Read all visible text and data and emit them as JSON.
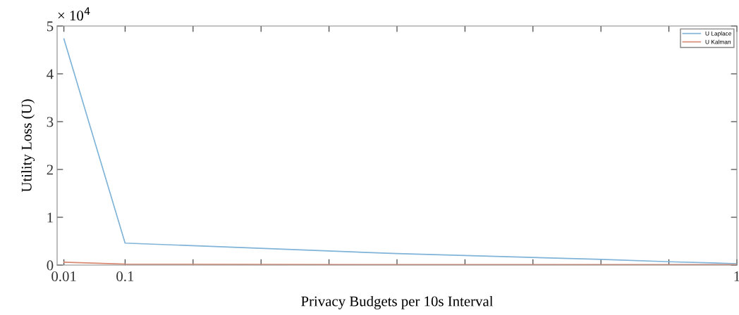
{
  "chart_data": {
    "type": "line",
    "xlabel": "Privacy Budgets per 10s Interval",
    "ylabel": "Utility Loss (U)",
    "xlim": [
      0,
      1
    ],
    "xticks": [
      0.01,
      0.1,
      {
        "value": 0.2,
        "label": null
      },
      {
        "value": 0.3,
        "label": null
      },
      {
        "value": 0.4,
        "label": null
      },
      {
        "value": 0.5,
        "label": null
      },
      {
        "value": 0.6,
        "label": null
      },
      {
        "value": 0.7,
        "label": null
      },
      {
        "value": 0.8,
        "label": null
      },
      {
        "value": 0.9,
        "label": null
      },
      1
    ],
    "ylim": [
      0,
      5
    ],
    "yticks": [
      0,
      1,
      2,
      3,
      4,
      5
    ],
    "annotations": [
      "× 10$^{4}$"
    ],
    "legend": "top right",
    "grid": false,
    "marker": "none",
    "line_style": "solid",
    "series": [
      {
        "name": "U Laplace",
        "color": "#7fb3d8",
        "x": [
          0.01,
          0.1,
          0.5,
          0.8,
          0.9,
          1
        ],
        "values": [
          4.73,
          0.46,
          0.24,
          0.12,
          0.07,
          0.03
        ]
      },
      {
        "name": "U Kalman",
        "color": "#d98a72",
        "x": [
          0.01,
          0.1,
          0.5,
          1
        ],
        "values": [
          0.06,
          0.02,
          0.01,
          0.01
        ]
      }
    ]
  }
}
